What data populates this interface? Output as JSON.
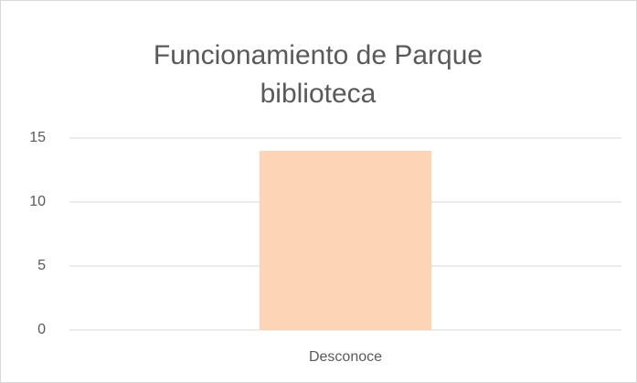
{
  "chart_data": {
    "type": "bar",
    "title": "Funcionamiento de Parque biblioteca",
    "categories": [
      "Desconoce"
    ],
    "values": [
      14
    ],
    "color": "#fbd5b5",
    "ylim": [
      0,
      15
    ],
    "yticks": [
      0,
      5,
      10,
      15
    ],
    "grid": true
  }
}
